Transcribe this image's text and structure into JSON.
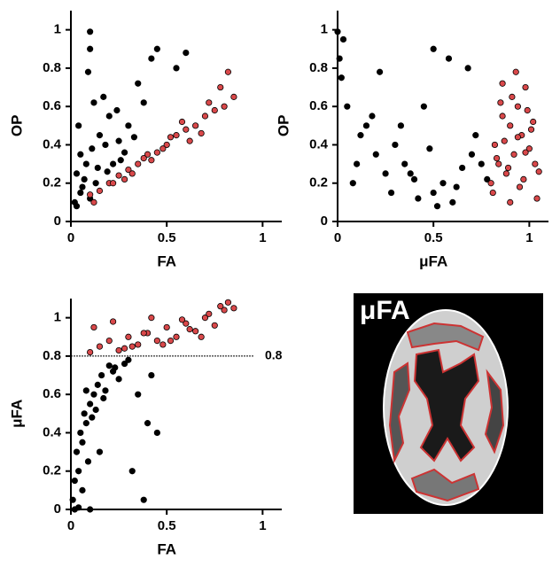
{
  "chart_data": [
    {
      "type": "scatter",
      "x_label": "FA",
      "y_label": "OP",
      "xlim": [
        0,
        1.1
      ],
      "ylim": [
        0,
        1.1
      ],
      "xticks": [
        0,
        0.5,
        1
      ],
      "yticks": [
        0,
        0.2,
        0.4,
        0.6,
        0.8,
        1
      ],
      "series": [
        {
          "color": "#000000",
          "x": [
            0.02,
            0.03,
            0.05,
            0.04,
            0.06,
            0.08,
            0.1,
            0.1,
            0.12,
            0.09,
            0.15,
            0.14,
            0.18,
            0.2,
            0.22,
            0.25,
            0.28,
            0.3,
            0.33,
            0.05,
            0.07,
            0.11,
            0.13,
            0.17,
            0.24,
            0.35,
            0.45,
            0.38,
            0.42,
            0.55,
            0.6,
            0.1,
            0.19,
            0.26,
            0.03
          ],
          "values": [
            0.1,
            0.25,
            0.35,
            0.5,
            0.18,
            0.3,
            0.99,
            0.9,
            0.62,
            0.78,
            0.45,
            0.28,
            0.4,
            0.55,
            0.3,
            0.42,
            0.36,
            0.5,
            0.44,
            0.15,
            0.22,
            0.38,
            0.2,
            0.65,
            0.58,
            0.72,
            0.9,
            0.62,
            0.85,
            0.8,
            0.88,
            0.12,
            0.26,
            0.32,
            0.08
          ]
        },
        {
          "color": "#d9484a",
          "x": [
            0.1,
            0.15,
            0.2,
            0.25,
            0.3,
            0.35,
            0.4,
            0.45,
            0.5,
            0.55,
            0.6,
            0.65,
            0.7,
            0.75,
            0.8,
            0.85,
            0.12,
            0.22,
            0.32,
            0.42,
            0.52,
            0.62,
            0.72,
            0.82,
            0.28,
            0.48,
            0.58,
            0.68,
            0.78,
            0.38
          ],
          "values": [
            0.14,
            0.16,
            0.2,
            0.24,
            0.27,
            0.3,
            0.35,
            0.36,
            0.4,
            0.45,
            0.48,
            0.5,
            0.55,
            0.58,
            0.6,
            0.65,
            0.1,
            0.2,
            0.25,
            0.32,
            0.44,
            0.42,
            0.62,
            0.78,
            0.22,
            0.38,
            0.52,
            0.46,
            0.7,
            0.33
          ]
        }
      ]
    },
    {
      "type": "scatter",
      "x_label": "μFA",
      "y_label": "OP",
      "xlim": [
        0,
        1.1
      ],
      "ylim": [
        0,
        1.1
      ],
      "xticks": [
        0,
        0.5,
        1
      ],
      "yticks": [
        0,
        0.2,
        0.4,
        0.6,
        0.8,
        1
      ],
      "series": [
        {
          "color": "#000000",
          "x": [
            0.0,
            0.01,
            0.02,
            0.03,
            0.05,
            0.1,
            0.12,
            0.08,
            0.15,
            0.2,
            0.25,
            0.3,
            0.35,
            0.4,
            0.45,
            0.5,
            0.55,
            0.6,
            0.65,
            0.7,
            0.75,
            0.78,
            0.22,
            0.33,
            0.42,
            0.48,
            0.52,
            0.58,
            0.62,
            0.68,
            0.72,
            0.38,
            0.28,
            0.18,
            0.5
          ],
          "values": [
            0.99,
            0.85,
            0.75,
            0.95,
            0.6,
            0.3,
            0.45,
            0.2,
            0.5,
            0.35,
            0.25,
            0.4,
            0.3,
            0.22,
            0.6,
            0.15,
            0.2,
            0.1,
            0.28,
            0.35,
            0.3,
            0.22,
            0.78,
            0.5,
            0.12,
            0.38,
            0.08,
            0.85,
            0.18,
            0.8,
            0.45,
            0.25,
            0.15,
            0.55,
            0.9
          ]
        },
        {
          "color": "#d9484a",
          "x": [
            0.8,
            0.82,
            0.84,
            0.86,
            0.88,
            0.9,
            0.92,
            0.94,
            0.96,
            0.98,
            1.0,
            1.02,
            1.04,
            0.81,
            0.85,
            0.89,
            0.93,
            0.97,
            1.01,
            0.83,
            0.87,
            0.91,
            0.95,
            0.99,
            1.03,
            0.86,
            0.9,
            0.94,
            0.98,
            1.05
          ],
          "values": [
            0.2,
            0.4,
            0.3,
            0.55,
            0.25,
            0.5,
            0.35,
            0.6,
            0.45,
            0.7,
            0.38,
            0.52,
            0.12,
            0.15,
            0.62,
            0.28,
            0.78,
            0.22,
            0.48,
            0.33,
            0.42,
            0.65,
            0.18,
            0.58,
            0.3,
            0.72,
            0.1,
            0.44,
            0.36,
            0.26
          ]
        }
      ]
    },
    {
      "type": "scatter",
      "x_label": "FA",
      "y_label": "μFA",
      "xlim": [
        0,
        1.1
      ],
      "ylim": [
        0,
        1.1
      ],
      "xticks": [
        0,
        0.5,
        1
      ],
      "yticks": [
        0,
        0.2,
        0.4,
        0.6,
        0.8,
        1
      ],
      "hline": 0.8,
      "series": [
        {
          "color": "#000000",
          "x": [
            0.01,
            0.02,
            0.03,
            0.04,
            0.05,
            0.06,
            0.07,
            0.08,
            0.1,
            0.12,
            0.14,
            0.16,
            0.18,
            0.2,
            0.22,
            0.25,
            0.3,
            0.35,
            0.4,
            0.45,
            0.04,
            0.06,
            0.09,
            0.11,
            0.13,
            0.15,
            0.17,
            0.28,
            0.32,
            0.38,
            0.42,
            0.08,
            0.02,
            0.1,
            0.23
          ],
          "values": [
            0.05,
            0.15,
            0.3,
            0.2,
            0.4,
            0.35,
            0.5,
            0.45,
            0.55,
            0.6,
            0.65,
            0.7,
            0.62,
            0.75,
            0.72,
            0.68,
            0.78,
            0.6,
            0.45,
            0.4,
            0.01,
            0.1,
            0.25,
            0.48,
            0.52,
            0.3,
            0.58,
            0.76,
            0.2,
            0.05,
            0.7,
            0.62,
            0.0,
            0.0,
            0.74
          ]
        },
        {
          "color": "#d9484a",
          "x": [
            0.1,
            0.15,
            0.2,
            0.25,
            0.3,
            0.35,
            0.4,
            0.45,
            0.5,
            0.55,
            0.6,
            0.65,
            0.7,
            0.75,
            0.8,
            0.85,
            0.12,
            0.22,
            0.32,
            0.42,
            0.52,
            0.62,
            0.72,
            0.82,
            0.28,
            0.38,
            0.48,
            0.58,
            0.68,
            0.78
          ],
          "values": [
            0.82,
            0.85,
            0.88,
            0.83,
            0.9,
            0.86,
            0.92,
            0.88,
            0.95,
            0.9,
            0.97,
            0.93,
            1.0,
            0.96,
            1.04,
            1.05,
            0.95,
            0.98,
            0.85,
            1.0,
            0.88,
            0.94,
            1.02,
            1.08,
            0.84,
            0.92,
            0.86,
            0.99,
            0.9,
            1.06
          ]
        }
      ]
    }
  ],
  "image": {
    "label": "μFA"
  }
}
